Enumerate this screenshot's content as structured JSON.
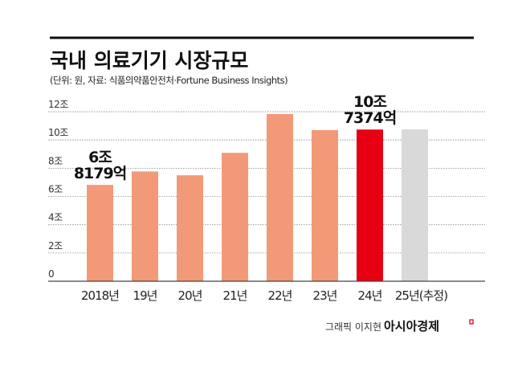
{
  "chart_data": {
    "type": "bar",
    "title": "국내 의료기기 시장규모",
    "subtitle": "(단위: 원, 자료: 식품의약품안전처·Fortune Business Insights)",
    "categories": [
      "2018년",
      "19년",
      "20년",
      "21년",
      "22년",
      "23년",
      "24년",
      "25년(추정)"
    ],
    "values": [
      6.8179,
      7.77,
      7.5,
      9.09,
      11.84,
      10.7,
      10.7374,
      10.75
    ],
    "unit": "조",
    "ylim": [
      0,
      12
    ],
    "yticks": [
      {
        "v": 0,
        "label": "0"
      },
      {
        "v": 2,
        "label": "2조"
      },
      {
        "v": 4,
        "label": "4조"
      },
      {
        "v": 6,
        "label": "6조"
      },
      {
        "v": 8,
        "label": "8조"
      },
      {
        "v": 10,
        "label": "10조"
      },
      {
        "v": 12,
        "label": "12조"
      }
    ],
    "grid": true,
    "annotations": [
      {
        "index": 0,
        "lines": [
          "6조",
          "8179억"
        ]
      },
      {
        "index": 6,
        "lines": [
          "10조",
          "7374억"
        ]
      }
    ],
    "colors": [
      "#f29a78",
      "#f29a78",
      "#f29a78",
      "#f29a78",
      "#f29a78",
      "#f29a78",
      "#e60012",
      "#d9d9d9"
    ]
  },
  "credit": {
    "author": "그래픽 이지현",
    "brand": "아시아경제"
  }
}
